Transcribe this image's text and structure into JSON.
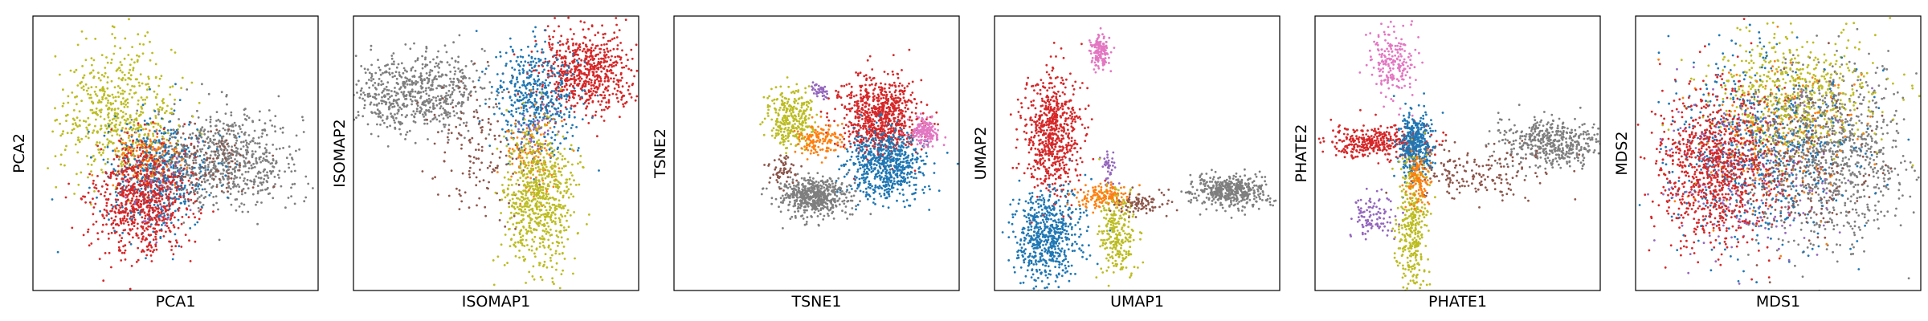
{
  "colors": {
    "blue": "#1f77b4",
    "orange": "#ff7f0e",
    "red": "#d62728",
    "purple": "#9467bd",
    "brown": "#8c564b",
    "pink": "#e377c2",
    "gray": "#7f7f7f",
    "olive": "#bcbd22"
  },
  "chart_data": [
    {
      "type": "scatter",
      "xlabel": "PCA1",
      "ylabel": "PCA2",
      "xlim": [
        0,
        100
      ],
      "ylim": [
        0,
        100
      ],
      "ticks": "none",
      "grid": false,
      "clusters": [
        {
          "color": "gray",
          "cx": 68,
          "cy": 48,
          "sx": 13,
          "sy": 9,
          "n": 700
        },
        {
          "color": "olive",
          "cx": 30,
          "cy": 65,
          "sx": 10,
          "sy": 12,
          "n": 550
        },
        {
          "color": "blue",
          "cx": 44,
          "cy": 42,
          "sx": 9,
          "sy": 10,
          "n": 500
        },
        {
          "color": "orange",
          "cx": 40,
          "cy": 48,
          "sx": 6,
          "sy": 6,
          "n": 150
        },
        {
          "color": "brown",
          "cx": 58,
          "cy": 46,
          "sx": 10,
          "sy": 7,
          "n": 120
        },
        {
          "color": "red",
          "cx": 38,
          "cy": 33,
          "sx": 8,
          "sy": 10,
          "n": 750
        },
        {
          "color": "purple",
          "cx": 42,
          "cy": 38,
          "sx": 7,
          "sy": 8,
          "n": 30
        }
      ]
    },
    {
      "type": "scatter",
      "xlabel": "ISOMAP1",
      "ylabel": "ISOMAP2",
      "xlim": [
        0,
        100
      ],
      "ylim": [
        0,
        100
      ],
      "ticks": "none",
      "grid": false,
      "clusters": [
        {
          "color": "gray",
          "cx": 22,
          "cy": 72,
          "sx": 12,
          "sy": 7,
          "n": 650
        },
        {
          "color": "brown",
          "cx": 45,
          "cy": 52,
          "sx": 9,
          "sy": 12,
          "n": 150
        },
        {
          "color": "red",
          "cx": 82,
          "cy": 80,
          "sx": 9,
          "sy": 7,
          "n": 650
        },
        {
          "color": "blue",
          "cx": 64,
          "cy": 70,
          "sx": 7,
          "sy": 10,
          "n": 450
        },
        {
          "color": "orange",
          "cx": 63,
          "cy": 50,
          "sx": 5,
          "sy": 8,
          "n": 120
        },
        {
          "color": "olive",
          "cx": 65,
          "cy": 33,
          "sx": 6,
          "sy": 13,
          "n": 700
        },
        {
          "color": "purple",
          "cx": 64,
          "cy": 60,
          "sx": 4,
          "sy": 4,
          "n": 30
        }
      ]
    },
    {
      "type": "scatter",
      "xlabel": "TSNE1",
      "ylabel": "TSNE2",
      "xlim": [
        0,
        100
      ],
      "ylim": [
        0,
        100
      ],
      "ticks": "none",
      "grid": false,
      "clusters": [
        {
          "color": "red",
          "cx": 72,
          "cy": 63,
          "sx": 7,
          "sy": 7,
          "n": 750
        },
        {
          "color": "blue",
          "cx": 74,
          "cy": 46,
          "sx": 7,
          "sy": 6,
          "n": 650
        },
        {
          "color": "olive",
          "cx": 41,
          "cy": 63,
          "sx": 4,
          "sy": 5,
          "n": 300
        },
        {
          "color": "gray",
          "cx": 49,
          "cy": 34,
          "sx": 6,
          "sy": 3.5,
          "n": 550
        },
        {
          "color": "pink",
          "cx": 88,
          "cy": 58,
          "sx": 2.3,
          "sy": 2.3,
          "n": 170
        },
        {
          "color": "purple",
          "cx": 51,
          "cy": 73,
          "sx": 1.5,
          "sy": 1.3,
          "n": 40
        },
        {
          "color": "orange",
          "cx": 50,
          "cy": 55,
          "sx": 4,
          "sy": 3,
          "n": 150
        },
        {
          "color": "brown",
          "cx": 38,
          "cy": 44,
          "sx": 3,
          "sy": 3,
          "n": 60
        }
      ]
    },
    {
      "type": "scatter",
      "xlabel": "UMAP1",
      "ylabel": "UMAP2",
      "xlim": [
        0,
        100
      ],
      "ylim": [
        0,
        100
      ],
      "ticks": "none",
      "grid": false,
      "clusters": [
        {
          "color": "red",
          "cx": 20,
          "cy": 57,
          "sx": 5,
          "sy": 11,
          "n": 650
        },
        {
          "color": "blue",
          "cx": 18,
          "cy": 20,
          "sx": 6,
          "sy": 9,
          "n": 600
        },
        {
          "color": "pink",
          "cx": 37,
          "cy": 87,
          "sx": 1.5,
          "sy": 3,
          "n": 150
        },
        {
          "color": "purple",
          "cx": 40,
          "cy": 45,
          "sx": 1.3,
          "sy": 4,
          "n": 40
        },
        {
          "color": "orange",
          "cx": 38,
          "cy": 34,
          "sx": 5,
          "sy": 2,
          "n": 150
        },
        {
          "color": "olive",
          "cx": 43,
          "cy": 20,
          "sx": 3,
          "sy": 8,
          "n": 250
        },
        {
          "color": "brown",
          "cx": 52,
          "cy": 32,
          "sx": 5,
          "sy": 2,
          "n": 90
        },
        {
          "color": "gray",
          "cx": 83,
          "cy": 36,
          "sx": 7,
          "sy": 3,
          "n": 450
        }
      ]
    },
    {
      "type": "scatter",
      "xlabel": "PHATE1",
      "ylabel": "PHATE2",
      "xlim": [
        0,
        100
      ],
      "ylim": [
        0,
        100
      ],
      "ticks": "none",
      "grid": false,
      "clusters": [
        {
          "color": "pink",
          "cx": 27,
          "cy": 83,
          "sx": 4,
          "sy": 6,
          "n": 200
        },
        {
          "color": "red",
          "cx": 22,
          "cy": 54,
          "sx": 9,
          "sy": 3,
          "n": 350
        },
        {
          "color": "blue",
          "cx": 35,
          "cy": 53,
          "sx": 3,
          "sy": 6,
          "n": 400
        },
        {
          "color": "gray",
          "cx": 83,
          "cy": 54,
          "sx": 9,
          "sy": 4,
          "n": 450
        },
        {
          "color": "brown",
          "cx": 55,
          "cy": 43,
          "sx": 12,
          "sy": 5,
          "n": 180
        },
        {
          "color": "purple",
          "cx": 20,
          "cy": 27,
          "sx": 4,
          "sy": 4,
          "n": 100
        },
        {
          "color": "olive",
          "cx": 34,
          "cy": 23,
          "sx": 2.5,
          "sy": 12,
          "n": 350
        },
        {
          "color": "orange",
          "cx": 36,
          "cy": 40,
          "sx": 2,
          "sy": 5,
          "n": 120
        }
      ]
    },
    {
      "type": "scatter",
      "xlabel": "MDS1",
      "ylabel": "MDS2",
      "xlim": [
        0,
        100
      ],
      "ylim": [
        0,
        100
      ],
      "ticks": "none",
      "grid": false,
      "clusters": [
        {
          "color": "gray",
          "cx": 68,
          "cy": 50,
          "sx": 13,
          "sy": 16,
          "n": 900
        },
        {
          "color": "olive",
          "cx": 53,
          "cy": 70,
          "sx": 15,
          "sy": 12,
          "n": 600
        },
        {
          "color": "blue",
          "cx": 42,
          "cy": 50,
          "sx": 16,
          "sy": 18,
          "n": 600
        },
        {
          "color": "purple",
          "cx": 40,
          "cy": 40,
          "sx": 15,
          "sy": 15,
          "n": 250
        },
        {
          "color": "orange",
          "cx": 50,
          "cy": 55,
          "sx": 14,
          "sy": 14,
          "n": 200
        },
        {
          "color": "brown",
          "cx": 55,
          "cy": 45,
          "sx": 14,
          "sy": 14,
          "n": 200
        },
        {
          "color": "red",
          "cx": 28,
          "cy": 45,
          "sx": 10,
          "sy": 14,
          "n": 900
        }
      ]
    }
  ]
}
